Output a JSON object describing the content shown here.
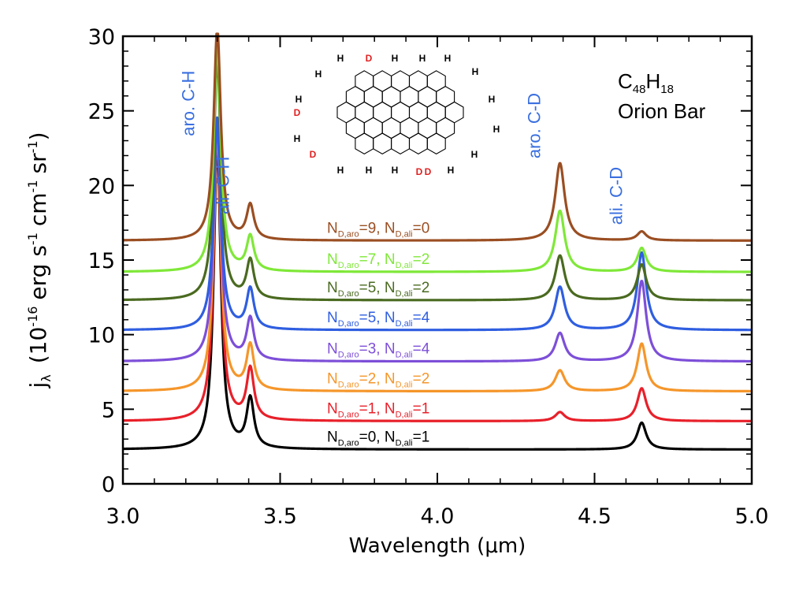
{
  "chart_data": {
    "type": "line",
    "title": "",
    "xlabel": "Wavelength (μm)",
    "ylabel": "(10",
    "ylabel_main": "j",
    "ylabel_sub": "λ",
    "ylabel_exp": "-16",
    "ylabel_erg": "erg s",
    "ylabel_cm": "cm",
    "ylabel_sr": "sr",
    "ylabel_m1": "-1",
    "ylabel_close": ")",
    "xlim": [
      3.0,
      5.0
    ],
    "ylim": [
      0,
      30
    ],
    "xticks": [
      3.0,
      3.5,
      4.0,
      4.5,
      5.0
    ],
    "xtick_labels": [
      "3.0",
      "3.5",
      "4.0",
      "4.5",
      "5.0"
    ],
    "yticks": [
      0,
      5,
      10,
      15,
      20,
      25,
      30
    ],
    "ytick_labels": [
      "0",
      "5",
      "10",
      "15",
      "20",
      "25",
      "30"
    ],
    "molecule": "C48H18",
    "molecule_C": "C",
    "molecule_C_sub": "48",
    "molecule_H": "H",
    "molecule_H_sub": "18",
    "object": "Orion Bar",
    "band_labels": [
      {
        "text": "aro. C-H",
        "x": 3.29,
        "y": 25.5
      },
      {
        "text": "ali. C-H",
        "x": 3.4,
        "y": 20.0
      },
      {
        "text": "aro. C-D",
        "x": 4.39,
        "y": 24.0
      },
      {
        "text": "ali. C-D",
        "x": 4.65,
        "y": 19.3
      }
    ],
    "band_color": "#3a6fe0",
    "series": [
      {
        "name": "N_D,aro=0, N_D,ali=1",
        "n_aro": "0",
        "n_ali": "1",
        "color": "#000000",
        "baseline": 2.3,
        "aro_ch": 20.5,
        "ali_ch": 3.3,
        "aro_cd": 0.0,
        "ali_cd": 1.8
      },
      {
        "name": "N_D,aro=1, N_D,ali=1",
        "n_aro": "1",
        "n_ali": "1",
        "color": "#e8202a",
        "baseline": 4.2,
        "aro_ch": 19.5,
        "ali_ch": 3.4,
        "aro_cd": 0.6,
        "ali_cd": 2.2
      },
      {
        "name": "N_D,aro=2, N_D,ali=2",
        "n_aro": "2",
        "n_ali": "2",
        "color": "#f5962a",
        "baseline": 6.2,
        "aro_ch": 17.5,
        "ali_ch": 3.0,
        "aro_cd": 1.4,
        "ali_cd": 3.2
      },
      {
        "name": "N_D,aro=3, N_D,ali=4",
        "n_aro": "3",
        "n_ali": "4",
        "color": "#7d4fd8",
        "baseline": 8.2,
        "aro_ch": 16.0,
        "ali_ch": 2.8,
        "aro_cd": 1.9,
        "ali_cd": 5.4
      },
      {
        "name": "N_D,aro=5, N_D,ali=4",
        "n_aro": "5",
        "n_ali": "4",
        "color": "#2f5ee0",
        "baseline": 10.3,
        "aro_ch": 14.2,
        "ali_ch": 2.7,
        "aro_cd": 2.9,
        "ali_cd": 5.2
      },
      {
        "name": "N_D,aro=5, N_D,ali=2",
        "n_aro": "5",
        "n_ali": "2",
        "color": "#4a6a20",
        "baseline": 12.3,
        "aro_ch": 16.3,
        "ali_ch": 2.6,
        "aro_cd": 3.0,
        "ali_cd": 2.4
      },
      {
        "name": "N_D,aro=7, N_D,ali=2",
        "n_aro": "7",
        "n_ali": "2",
        "color": "#7fe838",
        "baseline": 14.2,
        "aro_ch": 15.2,
        "ali_ch": 2.3,
        "aro_cd": 4.1,
        "ali_cd": 1.6
      },
      {
        "name": "N_D,aro=9, N_D,ali=0",
        "n_aro": "9",
        "n_ali": "0",
        "color": "#9a4e22",
        "baseline": 16.3,
        "aro_ch": 14.2,
        "ali_ch": 2.3,
        "aro_cd": 5.2,
        "ali_cd": 0.6
      }
    ],
    "legend_placement": "inline-center",
    "grid": false
  },
  "molecule_diagram": {
    "h_label": "H",
    "d_label": "D"
  },
  "colors": {
    "axis": "#000000",
    "background": "#ffffff",
    "deuterium": "#e02020"
  }
}
